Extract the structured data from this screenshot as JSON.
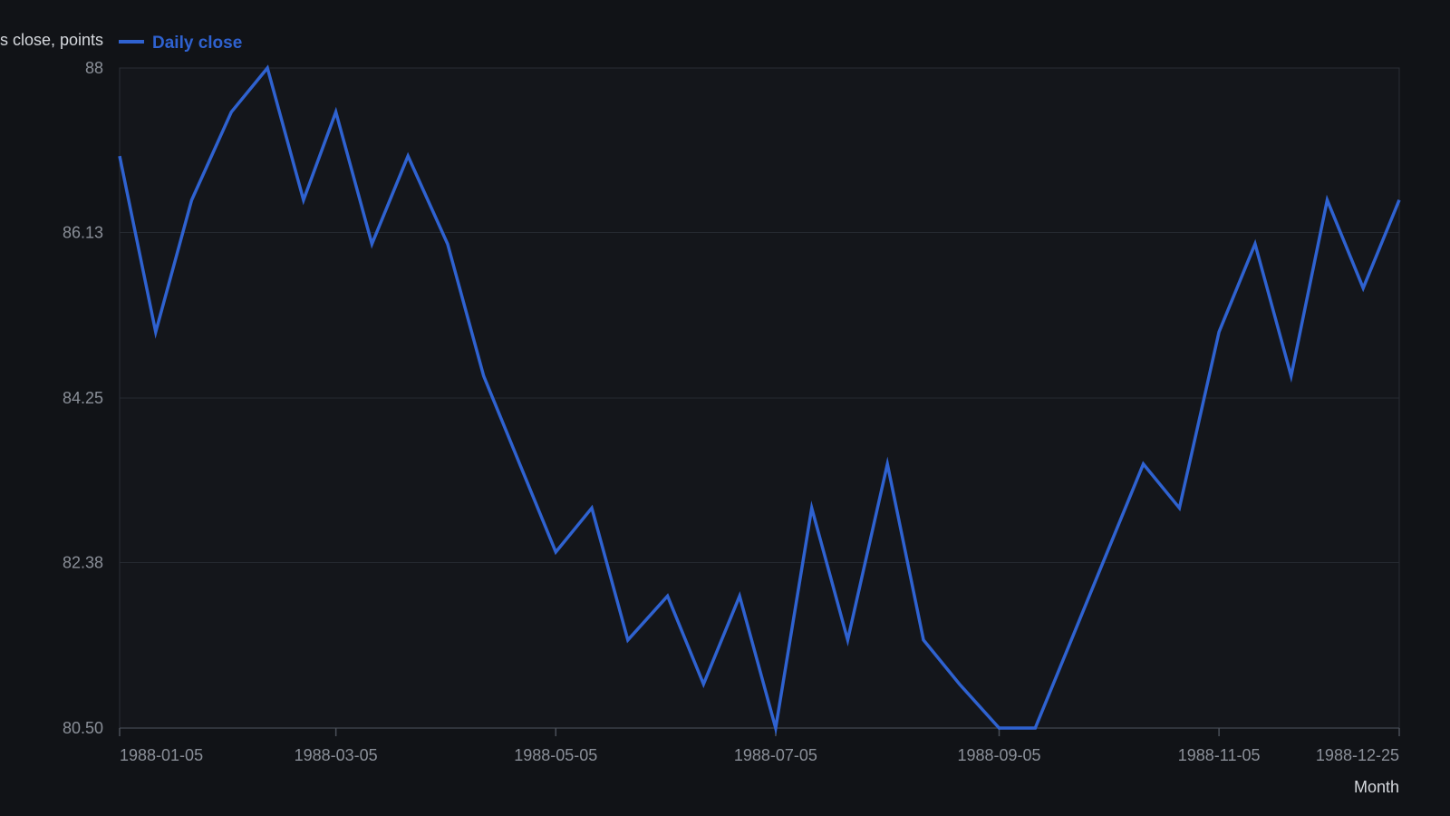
{
  "chart_data": {
    "type": "line",
    "ylabel": "s close, points",
    "xlabel": "Month",
    "ylim": [
      80.5,
      88
    ],
    "y_ticks": [
      "80.50",
      "82.38",
      "84.25",
      "86.13",
      "88"
    ],
    "x_ticks": [
      "1988-01-05",
      "1988-03-05",
      "1988-05-05",
      "1988-07-05",
      "1988-09-05",
      "1988-11-05",
      "1988-12-25"
    ],
    "grid": "horizontal",
    "legend_position": "top-left",
    "series": [
      {
        "name": "Daily close",
        "color": "#2f62d0",
        "points": [
          [
            "1988-01-05",
            87.0
          ],
          [
            "1988-01-15",
            85.0
          ],
          [
            "1988-01-25",
            86.5
          ],
          [
            "1988-02-05",
            87.5
          ],
          [
            "1988-02-15",
            88.0
          ],
          [
            "1988-02-25",
            86.5
          ],
          [
            "1988-03-05",
            87.5
          ],
          [
            "1988-03-15",
            86.0
          ],
          [
            "1988-03-25",
            87.0
          ],
          [
            "1988-04-05",
            86.0
          ],
          [
            "1988-04-15",
            84.5
          ],
          [
            "1988-04-25",
            83.5
          ],
          [
            "1988-05-05",
            82.5
          ],
          [
            "1988-05-15",
            83.0
          ],
          [
            "1988-05-25",
            81.5
          ],
          [
            "1988-06-05",
            82.0
          ],
          [
            "1988-06-15",
            81.0
          ],
          [
            "1988-06-25",
            82.0
          ],
          [
            "1988-07-05",
            80.5
          ],
          [
            "1988-07-15",
            83.0
          ],
          [
            "1988-07-25",
            81.5
          ],
          [
            "1988-08-05",
            83.5
          ],
          [
            "1988-08-15",
            81.5
          ],
          [
            "1988-08-25",
            81.0
          ],
          [
            "1988-09-05",
            80.5
          ],
          [
            "1988-09-15",
            80.5
          ],
          [
            "1988-09-25",
            81.5
          ],
          [
            "1988-10-05",
            82.5
          ],
          [
            "1988-10-15",
            83.5
          ],
          [
            "1988-10-25",
            83.0
          ],
          [
            "1988-11-05",
            85.0
          ],
          [
            "1988-11-15",
            86.0
          ],
          [
            "1988-11-25",
            84.5
          ],
          [
            "1988-12-05",
            86.5
          ],
          [
            "1988-12-15",
            85.5
          ],
          [
            "1988-12-25",
            86.5
          ]
        ]
      }
    ]
  }
}
